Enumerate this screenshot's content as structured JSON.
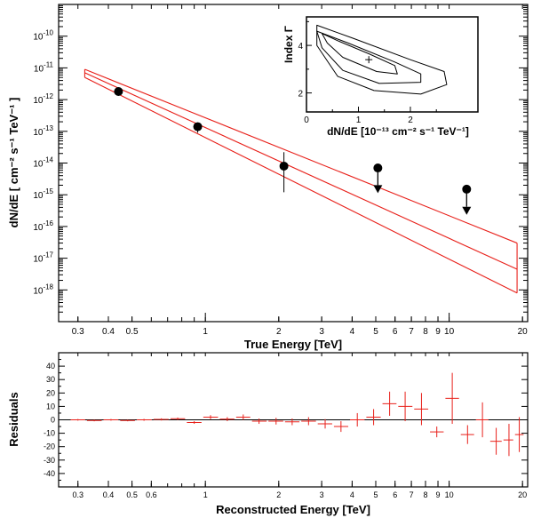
{
  "chart_data": [
    {
      "id": "spectrum",
      "type": "scatter",
      "xlabel": "True Energy [TeV]",
      "ylabel": "dN/dE [ cm⁻² s⁻¹ TeV⁻¹ ]",
      "xscale": "log",
      "yscale": "log",
      "xlim": [
        0.25,
        21
      ],
      "ylim": [
        1e-19,
        1e-09
      ],
      "x_ticks": [
        0.3,
        0.4,
        0.5,
        1,
        2,
        3,
        4,
        5,
        6,
        7,
        8,
        9,
        10,
        20
      ],
      "x_tick_labels": [
        "0.3",
        "0.4",
        "0.5",
        "1",
        "2",
        "3",
        "4",
        "5",
        "6",
        "7",
        "8",
        "9",
        "10",
        "20"
      ],
      "y_ticks": [
        1e-18,
        1e-17,
        1e-16,
        1e-15,
        1e-14,
        1e-13,
        1e-12,
        1e-11,
        1e-10
      ],
      "y_tick_exponents": [
        "-18",
        "-17",
        "-16",
        "-15",
        "-14",
        "-13",
        "-12",
        "-11",
        "-10"
      ],
      "y_tick_base": "10",
      "points": [
        {
          "x": 0.44,
          "y": 1.8e-12,
          "ylo": 1.6e-12,
          "yhi": 2e-12
        },
        {
          "x": 0.93,
          "y": 1.4e-13,
          "ylo": 9e-14,
          "yhi": 1.9e-13
        },
        {
          "x": 2.1,
          "y": 8e-15,
          "ylo": 1.2e-15,
          "yhi": 2.2e-14
        }
      ],
      "upper_limits": [
        {
          "x": 5.1,
          "y": 7e-15,
          "arrow_to": 1.2e-15
        },
        {
          "x": 11.8,
          "y": 1.5e-15,
          "arrow_to": 2.5e-16
        }
      ],
      "model_lines": [
        {
          "name": "upper",
          "x": [
            0.32,
            19
          ],
          "y": [
            9e-12,
            3e-17
          ]
        },
        {
          "name": "best-fit",
          "x": [
            0.32,
            19
          ],
          "y": [
            7e-12,
            4.5e-18
          ]
        },
        {
          "name": "lower",
          "x": [
            0.32,
            19
          ],
          "y": [
            5e-12,
            8e-19
          ]
        }
      ],
      "colors": {
        "model": "#e8201a",
        "points": "#000000"
      }
    },
    {
      "id": "inset",
      "type": "contour",
      "xlabel": "dN/dE [10⁻¹³ cm⁻² s⁻¹ TeV⁻¹]",
      "ylabel": "Index Γ",
      "xlim": [
        0,
        3.3
      ],
      "ylim": [
        1.2,
        5.2
      ],
      "x_ticks": [
        0,
        1,
        2
      ],
      "x_tick_labels": [
        "0",
        "1",
        "2"
      ],
      "y_ticks": [
        2,
        4
      ],
      "y_tick_labels": [
        "2",
        "4"
      ],
      "best_fit": {
        "x": 1.2,
        "y": 3.4
      },
      "contours": [
        [
          [
            0.3,
            4.5
          ],
          [
            0.6,
            4.2
          ],
          [
            1.2,
            3.65
          ],
          [
            1.7,
            3.15
          ],
          [
            1.75,
            2.8
          ],
          [
            1.35,
            2.9
          ],
          [
            0.7,
            3.5
          ],
          [
            0.4,
            4.1
          ],
          [
            0.3,
            4.5
          ]
        ],
        [
          [
            0.2,
            4.6
          ],
          [
            0.8,
            4.1
          ],
          [
            1.7,
            3.3
          ],
          [
            2.2,
            2.8
          ],
          [
            2.2,
            2.45
          ],
          [
            1.4,
            2.4
          ],
          [
            0.7,
            2.95
          ],
          [
            0.3,
            3.9
          ],
          [
            0.2,
            4.6
          ]
        ],
        [
          [
            0.2,
            4.85
          ],
          [
            0.9,
            4.3
          ],
          [
            2.0,
            3.4
          ],
          [
            2.65,
            2.9
          ],
          [
            2.7,
            2.35
          ],
          [
            2.2,
            1.95
          ],
          [
            1.3,
            2.1
          ],
          [
            0.6,
            2.7
          ],
          [
            0.2,
            4.0
          ],
          [
            0.2,
            4.85
          ]
        ]
      ]
    },
    {
      "id": "residuals",
      "type": "scatter",
      "xlabel": "Reconstructed Energy [TeV]",
      "ylabel": "Residuals",
      "xscale": "log",
      "xlim": [
        0.25,
        21
      ],
      "ylim": [
        -50,
        50
      ],
      "x_ticks": [
        0.3,
        0.4,
        0.5,
        0.6,
        1,
        2,
        3,
        4,
        5,
        6,
        7,
        8,
        9,
        10,
        20
      ],
      "x_tick_labels": [
        "0.3",
        "0.4",
        "0.5",
        "0.6",
        "1",
        "2",
        "3",
        "4",
        "5",
        "6",
        "7",
        "8",
        "9",
        "10",
        "20"
      ],
      "y_ticks": [
        -40,
        -30,
        -20,
        -10,
        0,
        10,
        20,
        30,
        40
      ],
      "y_tick_labels": [
        "-40",
        "-30",
        "-20",
        "-10",
        "0",
        "10",
        "20",
        "30",
        "40"
      ],
      "points": [
        {
          "x": 0.3,
          "y": 0,
          "err": 0.6
        },
        {
          "x": 0.35,
          "y": -0.5,
          "err": 0.6
        },
        {
          "x": 0.41,
          "y": 0,
          "err": 0.6
        },
        {
          "x": 0.48,
          "y": -0.5,
          "err": 0.6
        },
        {
          "x": 0.56,
          "y": 0,
          "err": 0.7
        },
        {
          "x": 0.66,
          "y": 0.3,
          "err": 0.8
        },
        {
          "x": 0.77,
          "y": 0.8,
          "err": 0.9
        },
        {
          "x": 0.9,
          "y": -2,
          "err": 1
        },
        {
          "x": 1.05,
          "y": 2,
          "err": 1.5
        },
        {
          "x": 1.23,
          "y": 0.5,
          "err": 1.5
        },
        {
          "x": 1.43,
          "y": 2,
          "err": 2
        },
        {
          "x": 1.66,
          "y": -1,
          "err": 2
        },
        {
          "x": 1.95,
          "y": -1,
          "err": 2.5
        },
        {
          "x": 2.27,
          "y": -1.5,
          "err": 2.5
        },
        {
          "x": 2.65,
          "y": -1,
          "err": 3
        },
        {
          "x": 3.1,
          "y": -3,
          "err": 3.5
        },
        {
          "x": 3.6,
          "y": -5,
          "err": 4
        },
        {
          "x": 4.2,
          "y": 0,
          "err": 5
        },
        {
          "x": 4.9,
          "y": 2,
          "err": 6
        },
        {
          "x": 5.7,
          "y": 12,
          "err": 9
        },
        {
          "x": 6.6,
          "y": 10,
          "err": 11
        },
        {
          "x": 7.7,
          "y": 8,
          "err": 12
        },
        {
          "x": 8.9,
          "y": -9,
          "err": 4
        },
        {
          "x": 10.3,
          "y": 16,
          "err": 19
        },
        {
          "x": 11.9,
          "y": -11,
          "err": 7
        },
        {
          "x": 13.7,
          "y": 0,
          "err": 13
        },
        {
          "x": 15.6,
          "y": -16,
          "err": 10
        },
        {
          "x": 17.6,
          "y": -15,
          "err": 12
        },
        {
          "x": 19.4,
          "y": -11,
          "err": 13
        }
      ],
      "colors": {
        "points": "#e8201a",
        "zero_line": "#000000"
      }
    }
  ]
}
